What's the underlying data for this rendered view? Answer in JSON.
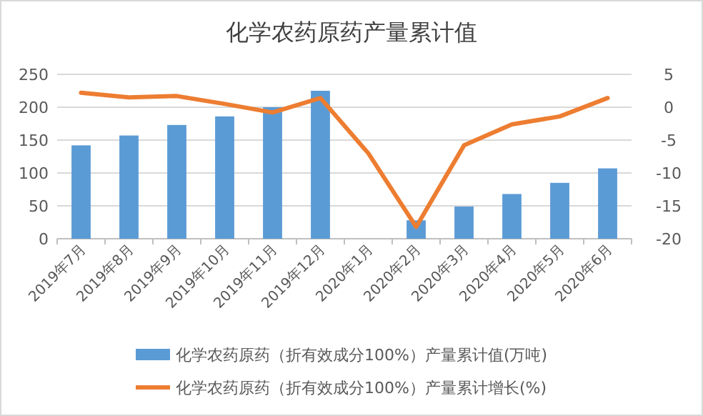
{
  "chart_data": {
    "type": "bar",
    "title": "化学农药原药产量累计值",
    "categories": [
      "2019年7月",
      "2019年8月",
      "2019年9月",
      "2019年10月",
      "2019年11月",
      "2019年12月",
      "2020年1月",
      "2020年2月",
      "2020年3月",
      "2020年4月",
      "2020年5月",
      "2020年6月"
    ],
    "series": [
      {
        "name": "化学农药原药（折有效成分100%）产量累计值(万吨)",
        "color": "#5b9bd5",
        "values": [
          142,
          157,
          173,
          186,
          200,
          225,
          null,
          28,
          49,
          68,
          85,
          107
        ]
      },
      {
        "name": "化学农药原药（折有效成分100%）产量累计增长(%)",
        "color": "#ed7d31",
        "type": "line",
        "axis": "y2",
        "values": [
          2.2,
          1.5,
          1.7,
          0.5,
          -0.8,
          1.4,
          -7,
          -18.2,
          -5.8,
          -2.6,
          -1.4,
          1.4
        ]
      }
    ],
    "ylim": [
      0,
      250
    ],
    "yticks": [
      0,
      50,
      100,
      150,
      200,
      250
    ],
    "y2lim": [
      -20,
      5
    ],
    "y2ticks": [
      -20,
      -15,
      -10,
      -5,
      0,
      5
    ],
    "grid": "y",
    "legend": "bottom"
  }
}
